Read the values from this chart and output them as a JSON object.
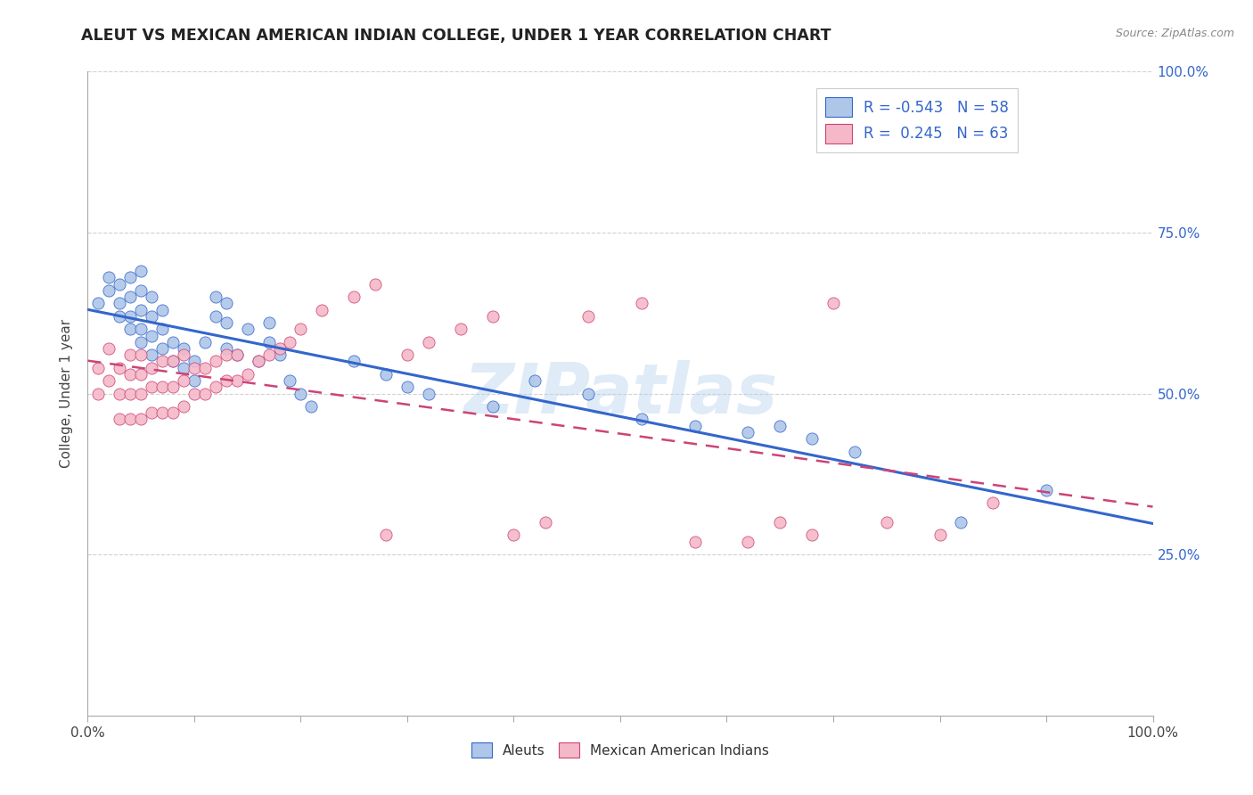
{
  "title": "ALEUT VS MEXICAN AMERICAN INDIAN COLLEGE, UNDER 1 YEAR CORRELATION CHART",
  "source": "Source: ZipAtlas.com",
  "ylabel": "College, Under 1 year",
  "xlim": [
    0,
    1
  ],
  "ylim": [
    0,
    1
  ],
  "xticks": [
    0,
    0.1,
    0.2,
    0.3,
    0.4,
    0.5,
    0.6,
    0.7,
    0.8,
    0.9,
    1.0
  ],
  "yticks": [
    0,
    0.25,
    0.5,
    0.75,
    1.0
  ],
  "xtick_labels": [
    "0.0%",
    "",
    "",
    "",
    "",
    "",
    "",
    "",
    "",
    "",
    "100.0%"
  ],
  "ytick_labels": [
    "",
    "25.0%",
    "50.0%",
    "75.0%",
    "100.0%"
  ],
  "aleut_color": "#aec6e8",
  "mexican_color": "#f4b8c8",
  "aleut_line_color": "#3366cc",
  "mexican_line_color": "#cc4477",
  "watermark": "ZIPatlas",
  "background_color": "#ffffff",
  "grid_color": "#cccccc",
  "aleuts_x": [
    0.01,
    0.02,
    0.02,
    0.03,
    0.03,
    0.03,
    0.04,
    0.04,
    0.04,
    0.04,
    0.05,
    0.05,
    0.05,
    0.05,
    0.05,
    0.06,
    0.06,
    0.06,
    0.06,
    0.07,
    0.07,
    0.07,
    0.08,
    0.08,
    0.09,
    0.09,
    0.1,
    0.1,
    0.11,
    0.12,
    0.12,
    0.13,
    0.13,
    0.13,
    0.14,
    0.15,
    0.16,
    0.17,
    0.17,
    0.18,
    0.19,
    0.2,
    0.21,
    0.25,
    0.28,
    0.3,
    0.32,
    0.38,
    0.42,
    0.47,
    0.52,
    0.57,
    0.62,
    0.65,
    0.68,
    0.72,
    0.82,
    0.9
  ],
  "aleuts_y": [
    0.64,
    0.66,
    0.68,
    0.62,
    0.64,
    0.67,
    0.6,
    0.62,
    0.65,
    0.68,
    0.58,
    0.6,
    0.63,
    0.66,
    0.69,
    0.56,
    0.59,
    0.62,
    0.65,
    0.57,
    0.6,
    0.63,
    0.55,
    0.58,
    0.54,
    0.57,
    0.52,
    0.55,
    0.58,
    0.62,
    0.65,
    0.57,
    0.61,
    0.64,
    0.56,
    0.6,
    0.55,
    0.58,
    0.61,
    0.56,
    0.52,
    0.5,
    0.48,
    0.55,
    0.53,
    0.51,
    0.5,
    0.48,
    0.52,
    0.5,
    0.46,
    0.45,
    0.44,
    0.45,
    0.43,
    0.41,
    0.3,
    0.35
  ],
  "mexican_x": [
    0.01,
    0.01,
    0.02,
    0.02,
    0.03,
    0.03,
    0.03,
    0.04,
    0.04,
    0.04,
    0.04,
    0.05,
    0.05,
    0.05,
    0.05,
    0.06,
    0.06,
    0.06,
    0.07,
    0.07,
    0.07,
    0.08,
    0.08,
    0.08,
    0.09,
    0.09,
    0.09,
    0.1,
    0.1,
    0.11,
    0.11,
    0.12,
    0.12,
    0.13,
    0.13,
    0.14,
    0.14,
    0.15,
    0.16,
    0.17,
    0.18,
    0.19,
    0.2,
    0.22,
    0.25,
    0.27,
    0.28,
    0.3,
    0.32,
    0.35,
    0.38,
    0.4,
    0.43,
    0.47,
    0.52,
    0.57,
    0.62,
    0.65,
    0.68,
    0.7,
    0.75,
    0.8,
    0.85
  ],
  "mexican_y": [
    0.5,
    0.54,
    0.52,
    0.57,
    0.46,
    0.5,
    0.54,
    0.46,
    0.5,
    0.53,
    0.56,
    0.46,
    0.5,
    0.53,
    0.56,
    0.47,
    0.51,
    0.54,
    0.47,
    0.51,
    0.55,
    0.47,
    0.51,
    0.55,
    0.48,
    0.52,
    0.56,
    0.5,
    0.54,
    0.5,
    0.54,
    0.51,
    0.55,
    0.52,
    0.56,
    0.52,
    0.56,
    0.53,
    0.55,
    0.56,
    0.57,
    0.58,
    0.6,
    0.63,
    0.65,
    0.67,
    0.28,
    0.56,
    0.58,
    0.6,
    0.62,
    0.28,
    0.3,
    0.62,
    0.64,
    0.27,
    0.27,
    0.3,
    0.28,
    0.64,
    0.3,
    0.28,
    0.33
  ]
}
